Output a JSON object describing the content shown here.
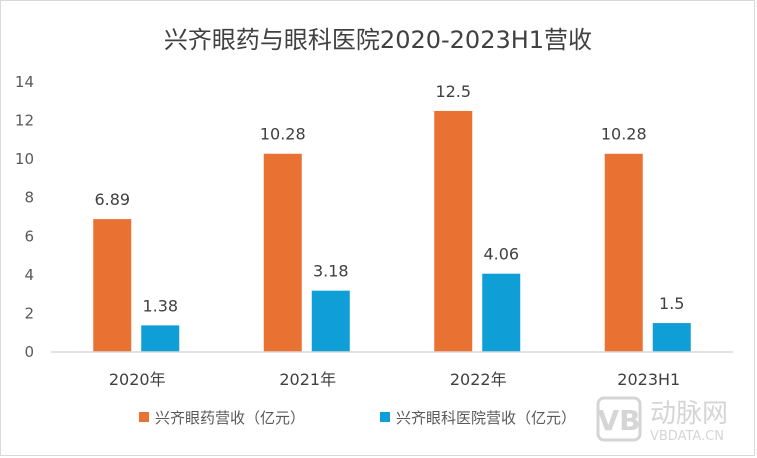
{
  "chart_data": {
    "type": "bar",
    "title": "兴齐眼药与眼科医院2020-2023H1营收",
    "categories": [
      "2020年",
      "2021年",
      "2022年",
      "2023H1"
    ],
    "series": [
      {
        "name": "兴齐眼药营收（亿元）",
        "values": [
          6.89,
          10.28,
          12.5,
          10.28
        ],
        "labels": [
          "6.89",
          "10.28",
          "12.5",
          "10.28"
        ],
        "color": "#E97132"
      },
      {
        "name": "兴齐眼科医院营收（亿元）",
        "values": [
          1.38,
          3.18,
          4.06,
          1.5
        ],
        "labels": [
          "1.38",
          "3.18",
          "4.06",
          "1.5"
        ],
        "color": "#0F9ED5"
      }
    ],
    "ylim": [
      0,
      14
    ],
    "yticks": [
      "0",
      "2",
      "4",
      "6",
      "8",
      "10",
      "12",
      "14"
    ],
    "grid": false,
    "legend": "bottom"
  },
  "watermark": {
    "cn": "动脉网",
    "en": "VBDATA.CN"
  }
}
